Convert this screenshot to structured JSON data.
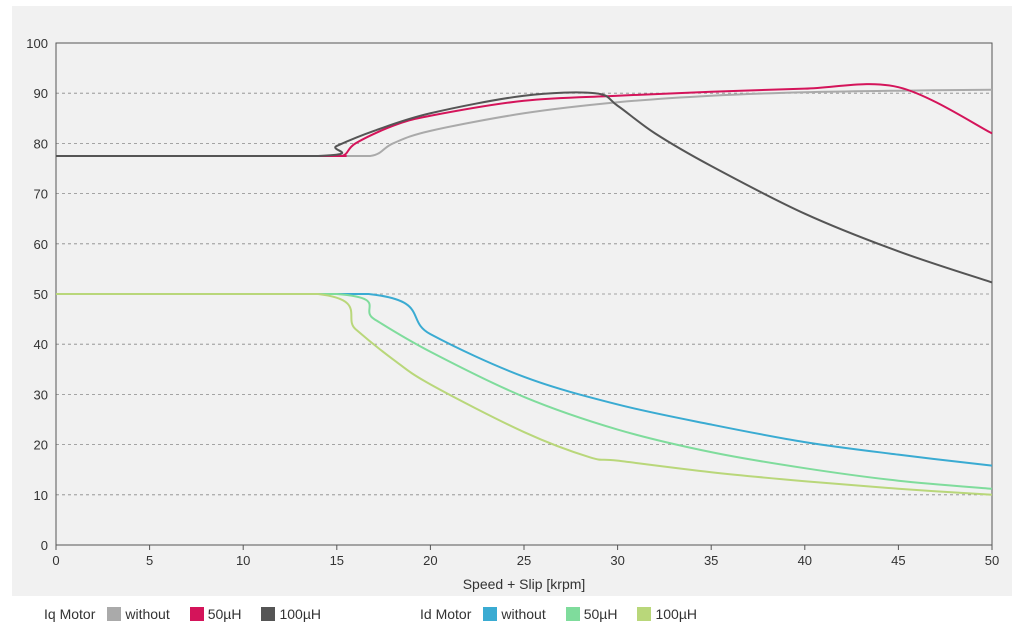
{
  "chart_data": {
    "type": "line",
    "xlabel": "Speed + Slip [krpm]",
    "ylabel": "",
    "xlim": [
      0,
      50
    ],
    "ylim": [
      0,
      100
    ],
    "x_ticks": [
      0,
      5,
      10,
      15,
      20,
      25,
      30,
      35,
      40,
      45,
      50
    ],
    "y_ticks": [
      0,
      10,
      20,
      30,
      40,
      50,
      60,
      70,
      80,
      90,
      100
    ],
    "grid": "horizontal-dashed",
    "legend_position": "bottom",
    "legend_groups": [
      {
        "title": "Iq Motor",
        "items": [
          {
            "label": "without",
            "color": "#aaaaaa"
          },
          {
            "label": "50µH",
            "color": "#d4145a"
          },
          {
            "label": "100µH",
            "color": "#555555"
          }
        ]
      },
      {
        "title": "Id Motor",
        "items": [
          {
            "label": "without",
            "color": "#3aabd2"
          },
          {
            "label": "50µH",
            "color": "#7fdc9c"
          },
          {
            "label": "100µH",
            "color": "#b9d77a"
          }
        ]
      }
    ],
    "series": [
      {
        "group": "Iq Motor",
        "label": "without",
        "color": "#aaaaaa",
        "points": [
          [
            0,
            77.5
          ],
          [
            14,
            77.5
          ],
          [
            16.8,
            77.5
          ],
          [
            18,
            80
          ],
          [
            20,
            82.5
          ],
          [
            25,
            86
          ],
          [
            30,
            88.2
          ],
          [
            35,
            89.5
          ],
          [
            40,
            90.2
          ],
          [
            45,
            90.5
          ],
          [
            50,
            90.7
          ]
        ]
      },
      {
        "group": "Iq Motor",
        "label": "50µH",
        "color": "#d4145a",
        "points": [
          [
            0,
            77.5
          ],
          [
            14,
            77.5
          ],
          [
            15.3,
            77.5
          ],
          [
            16,
            80
          ],
          [
            18,
            83.5
          ],
          [
            20,
            85.5
          ],
          [
            25,
            88.5
          ],
          [
            30,
            89.5
          ],
          [
            35,
            90.3
          ],
          [
            40,
            90.9
          ],
          [
            45,
            91.2
          ],
          [
            50,
            82
          ]
        ]
      },
      {
        "group": "Iq Motor",
        "label": "100µH",
        "color": "#555555",
        "points": [
          [
            0,
            77.5
          ],
          [
            14,
            77.5
          ],
          [
            15,
            79.5
          ],
          [
            17,
            82.5
          ],
          [
            20,
            86
          ],
          [
            25,
            89.5
          ],
          [
            28.8,
            90
          ],
          [
            30,
            87.5
          ],
          [
            32,
            82
          ],
          [
            35,
            75.5
          ],
          [
            40,
            66
          ],
          [
            45,
            58.5
          ],
          [
            50,
            52.3
          ]
        ]
      },
      {
        "group": "Id Motor",
        "label": "without",
        "color": "#3aabd2",
        "points": [
          [
            0,
            50
          ],
          [
            16.7,
            50
          ],
          [
            20,
            42
          ],
          [
            25,
            33.5
          ],
          [
            30,
            28
          ],
          [
            35,
            24
          ],
          [
            40,
            20.5
          ],
          [
            45,
            18
          ],
          [
            50,
            15.8
          ]
        ]
      },
      {
        "group": "Id Motor",
        "label": "50µH",
        "color": "#7fdc9c",
        "points": [
          [
            0,
            50
          ],
          [
            15,
            50
          ],
          [
            17,
            45
          ],
          [
            20,
            38.5
          ],
          [
            25,
            29.5
          ],
          [
            30,
            23
          ],
          [
            35,
            18.5
          ],
          [
            40,
            15.3
          ],
          [
            45,
            12.8
          ],
          [
            50,
            11.2
          ]
        ]
      },
      {
        "group": "Id Motor",
        "label": "100µH",
        "color": "#b9d77a",
        "points": [
          [
            0,
            50
          ],
          [
            14,
            50
          ],
          [
            16,
            43
          ],
          [
            18,
            37
          ],
          [
            20,
            32
          ],
          [
            25,
            22.5
          ],
          [
            28.5,
            17.5
          ],
          [
            30,
            16.8
          ],
          [
            35,
            14.5
          ],
          [
            40,
            12.7
          ],
          [
            45,
            11.2
          ],
          [
            50,
            10
          ]
        ]
      }
    ]
  }
}
